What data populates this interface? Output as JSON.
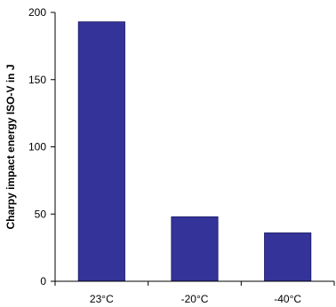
{
  "chart_data": {
    "type": "bar",
    "categories": [
      "23°C",
      "-20°C",
      "-40°C"
    ],
    "series": [
      {
        "values": [
          193,
          48,
          36
        ]
      }
    ],
    "title": "",
    "xlabel": "",
    "ylabel": "Charpy impact energy ISO-V in J",
    "ylim": [
      0,
      200
    ],
    "yticks": [
      0,
      50,
      100,
      150,
      200
    ],
    "grid": false,
    "legend": "none",
    "colors": {
      "bar": "#333399",
      "bar_edge": "#1a1a66",
      "axis": "#000000",
      "text": "#000000"
    }
  }
}
